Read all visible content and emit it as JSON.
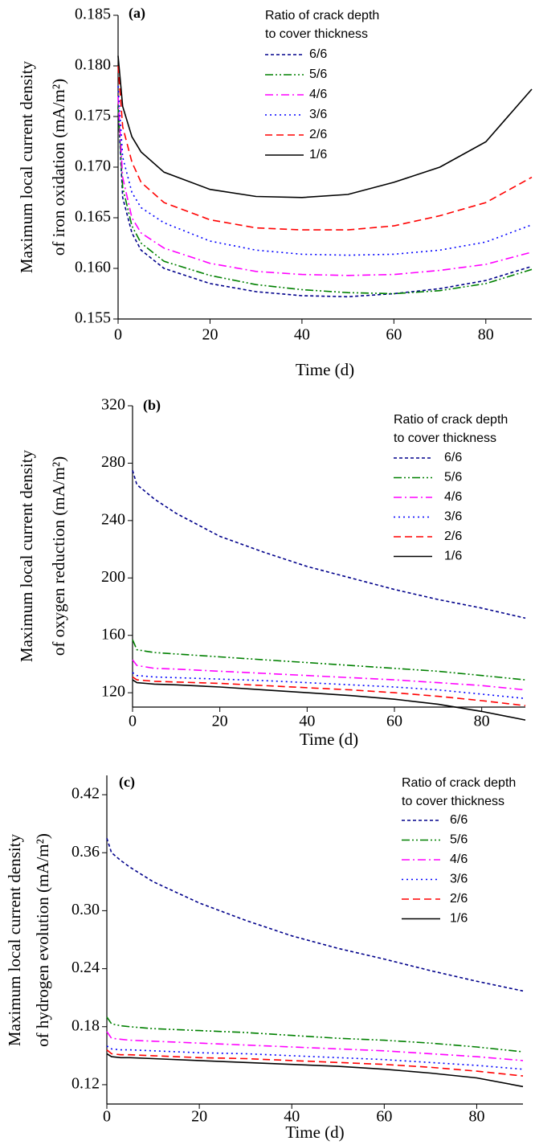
{
  "chart_data": [
    {
      "type": "line",
      "panel_label": "(a)",
      "ylabel": [
        "Maximum local current density",
        "of iron oxidation (mA/m²)"
      ],
      "xlabel": "Time (d)",
      "legend_title": [
        "Ratio of crack depth",
        "to cover thickness"
      ],
      "x": [
        0,
        1,
        3,
        5,
        10,
        20,
        30,
        40,
        50,
        60,
        70,
        80,
        90
      ],
      "series": [
        {
          "name": "6/6",
          "color": "#00008b",
          "style": "shortdash",
          "values": [
            0.176,
            0.167,
            0.1635,
            0.1618,
            0.16,
            0.1585,
            0.1577,
            0.1573,
            0.1572,
            0.1575,
            0.158,
            0.1588,
            0.1602
          ]
        },
        {
          "name": "5/6",
          "color": "#008000",
          "style": "dashdotdot",
          "values": [
            0.176,
            0.168,
            0.1642,
            0.1625,
            0.1607,
            0.1593,
            0.1584,
            0.1579,
            0.1576,
            0.1575,
            0.1578,
            0.1585,
            0.1599
          ]
        },
        {
          "name": "4/6",
          "color": "#ff00ff",
          "style": "dashdot",
          "values": [
            0.177,
            0.169,
            0.165,
            0.1635,
            0.162,
            0.1605,
            0.1597,
            0.1594,
            0.1593,
            0.1594,
            0.1598,
            0.1604,
            0.1616
          ]
        },
        {
          "name": "3/6",
          "color": "#0000ff",
          "style": "dot",
          "values": [
            0.178,
            0.171,
            0.1675,
            0.166,
            0.1645,
            0.1627,
            0.1618,
            0.1614,
            0.1613,
            0.1614,
            0.1618,
            0.1626,
            0.1643
          ]
        },
        {
          "name": "2/6",
          "color": "#ff0000",
          "style": "dash",
          "values": [
            0.18,
            0.174,
            0.1705,
            0.1685,
            0.1665,
            0.1648,
            0.164,
            0.1638,
            0.1638,
            0.1642,
            0.1652,
            0.1665,
            0.169
          ]
        },
        {
          "name": "1/6",
          "color": "#000000",
          "style": "solid",
          "values": [
            0.181,
            0.176,
            0.173,
            0.1715,
            0.1695,
            0.1678,
            0.1671,
            0.167,
            0.1673,
            0.1685,
            0.17,
            0.1725,
            0.1777
          ]
        }
      ],
      "xlim": [
        0,
        90
      ],
      "ylim": [
        0.155,
        0.185
      ],
      "xticks": [
        0,
        20,
        40,
        60,
        80
      ],
      "yticks": [
        0.155,
        {
          "value": 0.16,
          "label": "0.160"
        },
        0.165,
        {
          "value": 0.17,
          "label": "0.170"
        },
        0.175,
        {
          "value": 0.18,
          "label": "0.180"
        },
        0.185
      ]
    },
    {
      "type": "line",
      "panel_label": "(b)",
      "ylabel": [
        "Maximum local current density",
        "of oxygen reduction (mA/m²)"
      ],
      "xlabel": "Time (d)",
      "legend_title": [
        "Ratio of crack depth",
        "to cover thickness"
      ],
      "x": [
        0,
        1,
        3,
        5,
        10,
        20,
        30,
        40,
        50,
        60,
        70,
        80,
        90
      ],
      "series": [
        {
          "name": "6/6",
          "color": "#00008b",
          "style": "shortdash",
          "values": [
            275,
            265,
            260,
            255,
            245,
            229,
            218,
            208,
            200,
            192,
            185,
            179,
            172
          ]
        },
        {
          "name": "5/6",
          "color": "#008000",
          "style": "dashdotdot",
          "values": [
            157,
            150,
            149,
            148,
            147,
            145,
            143,
            141,
            139,
            137,
            135,
            132,
            129
          ]
        },
        {
          "name": "4/6",
          "color": "#ff00ff",
          "style": "dashdot",
          "values": [
            143,
            139,
            138,
            137,
            136.5,
            135,
            133.5,
            132,
            130.5,
            129,
            127,
            125,
            122
          ]
        },
        {
          "name": "3/6",
          "color": "#0000ff",
          "style": "dot",
          "values": [
            134,
            132,
            131.5,
            131,
            130.5,
            129.5,
            128.5,
            127,
            125.5,
            124,
            122,
            119,
            116
          ]
        },
        {
          "name": "2/6",
          "color": "#ff0000",
          "style": "dash",
          "values": [
            131,
            129,
            128.5,
            128,
            127.5,
            126.5,
            125,
            123.5,
            122,
            120,
            117.5,
            114.5,
            111
          ]
        },
        {
          "name": "1/6",
          "color": "#000000",
          "style": "solid",
          "values": [
            129,
            127,
            126.5,
            126,
            125.5,
            124,
            122,
            120,
            118,
            115.5,
            112,
            107,
            101
          ]
        }
      ],
      "xlim": [
        0,
        90
      ],
      "ylim": [
        110,
        320
      ],
      "xticks": [
        0,
        20,
        40,
        60,
        80
      ],
      "yticks": [
        120,
        160,
        200,
        240,
        280,
        320
      ]
    },
    {
      "type": "line",
      "panel_label": "(c)",
      "ylabel": [
        "Maximum local current density",
        "of hydrogen evolution (mA/m²)"
      ],
      "xlabel": "Time (d)",
      "legend_title": [
        "Ratio of crack depth",
        "to cover thickness"
      ],
      "x": [
        0,
        1,
        3,
        5,
        10,
        20,
        30,
        40,
        50,
        60,
        70,
        80,
        90
      ],
      "series": [
        {
          "name": "6/6",
          "color": "#00008b",
          "style": "shortdash",
          "values": [
            0.375,
            0.36,
            0.352,
            0.345,
            0.33,
            0.308,
            0.29,
            0.274,
            0.261,
            0.25,
            0.238,
            0.227,
            0.217
          ]
        },
        {
          "name": "5/6",
          "color": "#008000",
          "style": "dashdotdot",
          "values": [
            0.19,
            0.183,
            0.181,
            0.18,
            0.178,
            0.176,
            0.174,
            0.171,
            0.168,
            0.166,
            0.163,
            0.159,
            0.154
          ]
        },
        {
          "name": "4/6",
          "color": "#ff00ff",
          "style": "dashdot",
          "values": [
            0.175,
            0.168,
            0.167,
            0.166,
            0.165,
            0.163,
            0.161,
            0.159,
            0.157,
            0.155,
            0.152,
            0.149,
            0.145
          ]
        },
        {
          "name": "3/6",
          "color": "#0000ff",
          "style": "dot",
          "values": [
            0.16,
            0.157,
            0.156,
            0.156,
            0.155,
            0.153,
            0.152,
            0.15,
            0.148,
            0.146,
            0.143,
            0.14,
            0.136
          ]
        },
        {
          "name": "2/6",
          "color": "#ff0000",
          "style": "dash",
          "values": [
            0.156,
            0.152,
            0.151,
            0.151,
            0.15,
            0.148,
            0.147,
            0.145,
            0.143,
            0.141,
            0.138,
            0.134,
            0.129
          ]
        },
        {
          "name": "1/6",
          "color": "#000000",
          "style": "solid",
          "values": [
            0.152,
            0.149,
            0.148,
            0.148,
            0.147,
            0.145,
            0.143,
            0.141,
            0.139,
            0.136,
            0.132,
            0.127,
            0.118
          ]
        }
      ],
      "xlim": [
        0,
        90
      ],
      "ylim": [
        0.1,
        0.44
      ],
      "xticks": [
        0,
        20,
        40,
        60,
        80
      ],
      "yticks": [
        0.12,
        0.18,
        0.24,
        {
          "value": 0.3,
          "label": "0.30"
        },
        0.36,
        0.42
      ]
    }
  ]
}
